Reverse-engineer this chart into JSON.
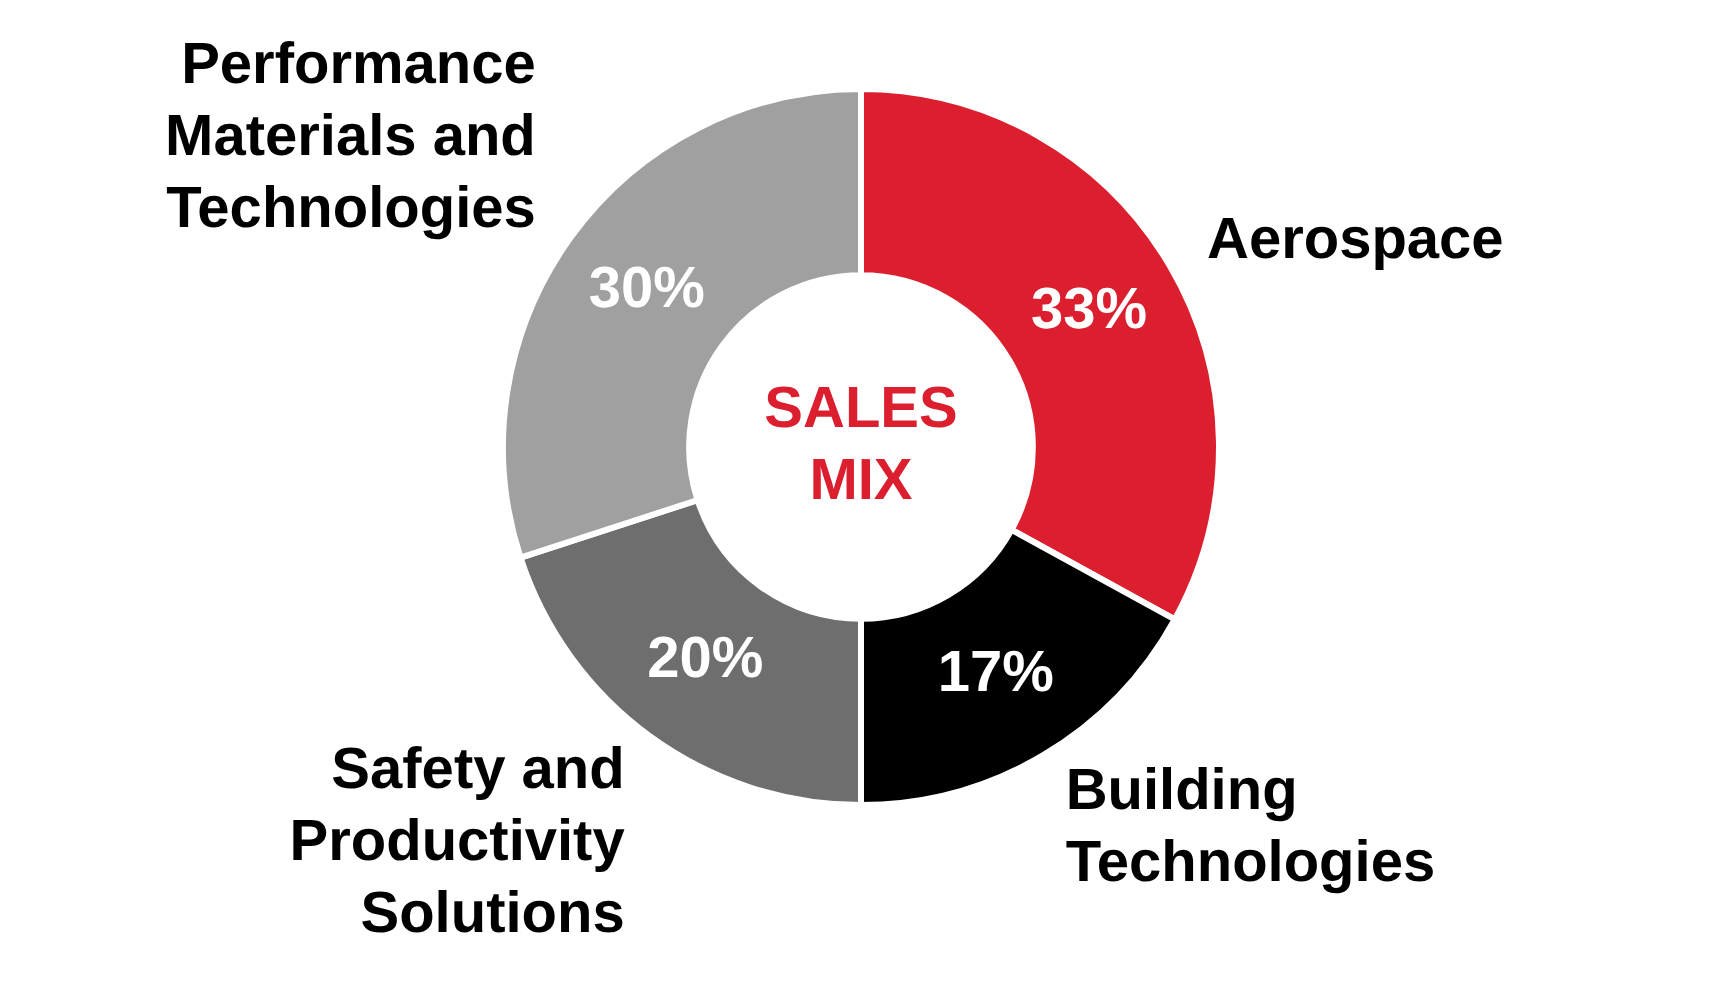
{
  "chart_data": {
    "type": "donut",
    "title": "SALES MIX",
    "categories": [
      "Aerospace",
      "Building Technologies",
      "Safety and Productivity Solutions",
      "Performance Materials and Technologies"
    ],
    "values": [
      33,
      17,
      20,
      30
    ],
    "colors": [
      "#dc1f2e",
      "#000000",
      "#6e6e6e",
      "#a0a0a0"
    ],
    "value_labels": [
      "33%",
      "17%",
      "20%",
      "30%"
    ],
    "legend": false
  }
}
